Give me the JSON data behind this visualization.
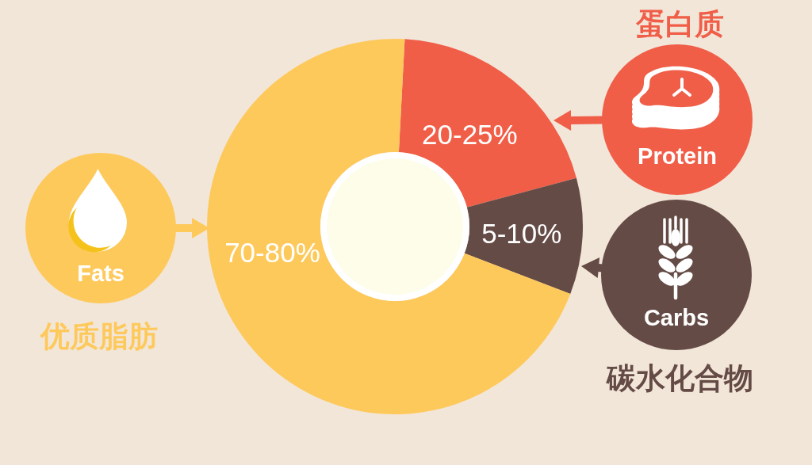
{
  "chart_data": {
    "type": "donut",
    "categories": [
      "Protein",
      "Carbs",
      "Fats"
    ],
    "values": [
      20,
      10,
      70
    ],
    "colors": [
      "#f05e48",
      "#654b45",
      "#fec95b"
    ],
    "annotations": [
      "蛋白质",
      "碳水化合物",
      "优质脂肪",
      "20-25%",
      "5-10%",
      "70-80%"
    ]
  }
}
